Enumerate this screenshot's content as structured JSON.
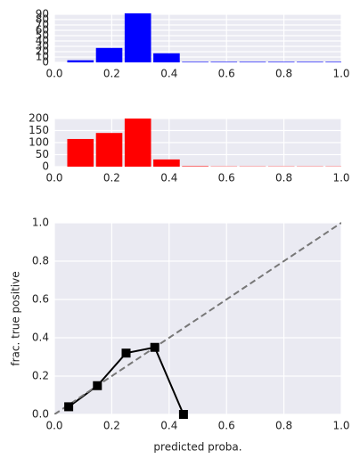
{
  "chart_data": [
    {
      "type": "histogram",
      "color": "#0000ff",
      "bins": [
        0.045,
        0.145,
        0.245,
        0.345,
        0.445,
        0.545,
        0.645,
        0.745,
        0.845,
        0.945,
        1.045
      ],
      "values": [
        4,
        27,
        95,
        17,
        1,
        1,
        1,
        1,
        1,
        1
      ],
      "xlim": [
        0,
        1
      ],
      "xticks": [
        {
          "value": 0,
          "label": "0.0"
        },
        0.2,
        0.4,
        0.6,
        0.8,
        {
          "value": 1,
          "label": "1.0"
        }
      ],
      "ylim": [
        0,
        90
      ],
      "yticks": [
        0,
        10,
        20,
        30,
        40,
        50,
        60,
        70,
        80,
        90
      ],
      "grid": true
    },
    {
      "type": "histogram",
      "color": "#ff0000",
      "bins": [
        0.045,
        0.145,
        0.245,
        0.345,
        0.445,
        0.545,
        0.645,
        0.745,
        0.845,
        0.945,
        1.045
      ],
      "values": [
        115,
        140,
        200,
        30,
        2,
        1,
        1,
        1,
        1,
        1
      ],
      "xlim": [
        0,
        1
      ],
      "xticks": [
        {
          "value": 0,
          "label": "0.0"
        },
        0.2,
        0.4,
        0.6,
        0.8,
        {
          "value": 1,
          "label": "1.0"
        }
      ],
      "ylim": [
        0,
        200
      ],
      "yticks": [
        0,
        50,
        100,
        150,
        200
      ],
      "grid": true
    },
    {
      "type": "line",
      "x_label": "predicted proba.",
      "y_label": "frac. true positive",
      "series": [
        {
          "color": "#000000",
          "marker": "square",
          "linestyle": "solid",
          "x": [
            0.05,
            0.15,
            0.25,
            0.35,
            0.45
          ],
          "values": [
            0.04,
            0.15,
            0.32,
            0.35,
            0.0
          ]
        },
        {
          "color": "#777777",
          "linestyle": "dashed",
          "x": [
            0,
            1
          ],
          "values": [
            0,
            1
          ]
        }
      ],
      "xlim": [
        0,
        1
      ],
      "xticks": [
        {
          "value": 0,
          "label": "0.0"
        },
        0.2,
        0.4,
        0.6,
        0.8,
        {
          "value": 1,
          "label": "1.0"
        }
      ],
      "ylim": [
        0,
        1
      ],
      "yticks": [
        {
          "value": 0,
          "label": "0.0"
        },
        0.2,
        0.4,
        0.6,
        0.8,
        {
          "value": 1,
          "label": "1.0"
        }
      ],
      "grid": true
    }
  ]
}
